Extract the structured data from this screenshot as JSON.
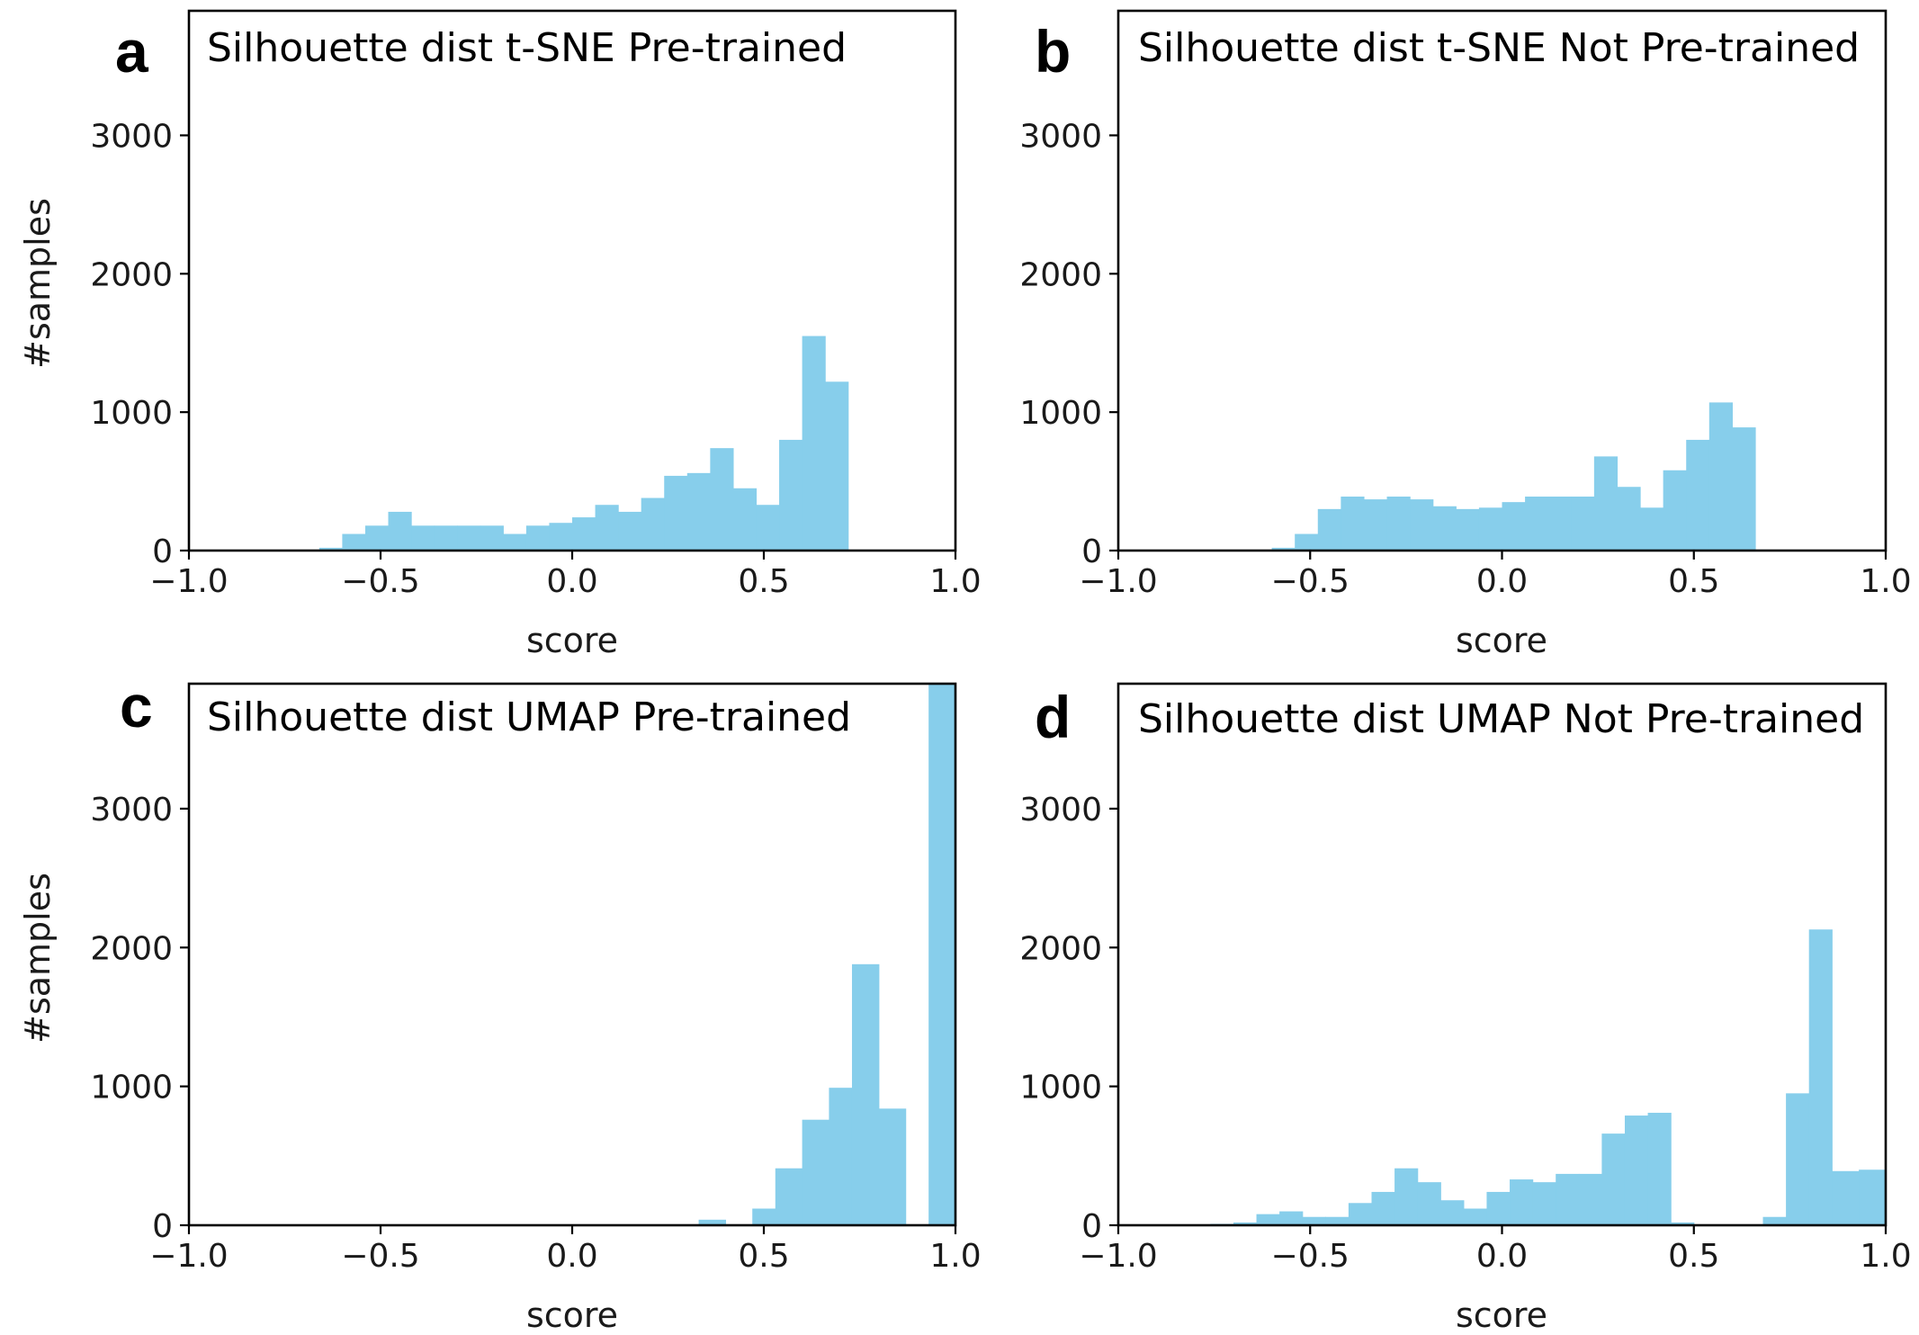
{
  "figure": {
    "bar_color": "#87CEEB"
  },
  "chart_data": [
    {
      "type": "bar",
      "letter": "a",
      "title": "Silhouette dist t-SNE Pre-trained",
      "xlabel": "score",
      "ylabel": "#samples",
      "xlim": [
        -1.0,
        1.0
      ],
      "ylim": [
        0,
        3900
      ],
      "xticks": [
        -1.0,
        -0.5,
        0.0,
        0.5,
        1.0
      ],
      "xtick_labels": [
        "−1.0",
        "−0.5",
        "0.0",
        "0.5",
        "1.0"
      ],
      "yticks": [
        0,
        1000,
        2000,
        3000
      ],
      "ytick_labels": [
        "0",
        "1000",
        "2000",
        "3000"
      ],
      "bin_edges": [
        -0.66,
        -0.6,
        -0.54,
        -0.48,
        -0.42,
        -0.36,
        -0.3,
        -0.24,
        -0.18,
        -0.12,
        -0.06,
        0.0,
        0.06,
        0.12,
        0.18,
        0.24,
        0.3,
        0.36,
        0.42,
        0.48,
        0.54,
        0.6,
        0.66,
        0.72,
        0.78,
        0.84
      ],
      "values": [
        20,
        120,
        180,
        280,
        180,
        180,
        180,
        180,
        120,
        180,
        200,
        240,
        330,
        280,
        380,
        540,
        560,
        740,
        450,
        330,
        800,
        1550,
        1220,
        0,
        0
      ]
    },
    {
      "type": "bar",
      "letter": "b",
      "title": "Silhouette dist t-SNE Not Pre-trained",
      "xlabel": "score",
      "ylabel": "",
      "xlim": [
        -1.0,
        1.0
      ],
      "ylim": [
        0,
        3900
      ],
      "xticks": [
        -1.0,
        -0.5,
        0.0,
        0.5,
        1.0
      ],
      "xtick_labels": [
        "−1.0",
        "−0.5",
        "0.0",
        "0.5",
        "1.0"
      ],
      "yticks": [
        0,
        1000,
        2000,
        3000
      ],
      "ytick_labels": [
        "0",
        "1000",
        "2000",
        "3000"
      ],
      "bin_edges": [
        -0.6,
        -0.54,
        -0.48,
        -0.42,
        -0.36,
        -0.3,
        -0.24,
        -0.18,
        -0.12,
        -0.06,
        0.0,
        0.06,
        0.12,
        0.18,
        0.24,
        0.3,
        0.36,
        0.42,
        0.48,
        0.54,
        0.6,
        0.66,
        0.72,
        0.78
      ],
      "values": [
        20,
        120,
        300,
        390,
        370,
        390,
        370,
        320,
        300,
        310,
        350,
        390,
        390,
        390,
        680,
        460,
        310,
        580,
        800,
        1070,
        890,
        0,
        0
      ]
    },
    {
      "type": "bar",
      "letter": "c",
      "title": "Silhouette dist UMAP Pre-trained",
      "xlabel": "score",
      "ylabel": "#samples",
      "xlim": [
        -1.0,
        1.0
      ],
      "ylim": [
        0,
        3900
      ],
      "xticks": [
        -1.0,
        -0.5,
        0.0,
        0.5,
        1.0
      ],
      "xtick_labels": [
        "−1.0",
        "−0.5",
        "0.0",
        "0.5",
        "1.0"
      ],
      "yticks": [
        0,
        1000,
        2000,
        3000
      ],
      "ytick_labels": [
        "0",
        "1000",
        "2000",
        "3000"
      ],
      "bin_edges": [
        0.33,
        0.4,
        0.47,
        0.53,
        0.6,
        0.67,
        0.73,
        0.8,
        0.87,
        0.93,
        1.0
      ],
      "values": [
        40,
        0,
        120,
        410,
        760,
        990,
        1880,
        840,
        0,
        3900
      ]
    },
    {
      "type": "bar",
      "letter": "d",
      "title": "Silhouette dist UMAP Not Pre-trained",
      "xlabel": "score",
      "ylabel": "",
      "xlim": [
        -1.0,
        1.0
      ],
      "ylim": [
        0,
        3900
      ],
      "xticks": [
        -1.0,
        -0.5,
        0.0,
        0.5,
        1.0
      ],
      "xtick_labels": [
        "−1.0",
        "−0.5",
        "0.0",
        "0.5",
        "1.0"
      ],
      "yticks": [
        0,
        1000,
        2000,
        3000
      ],
      "ytick_labels": [
        "0",
        "1000",
        "2000",
        "3000"
      ],
      "bin_edges": [
        -0.76,
        -0.7,
        -0.64,
        -0.58,
        -0.52,
        -0.46,
        -0.4,
        -0.34,
        -0.28,
        -0.22,
        -0.16,
        -0.1,
        -0.04,
        0.02,
        0.08,
        0.14,
        0.2,
        0.26,
        0.32,
        0.38,
        0.44,
        0.5,
        0.56,
        0.62,
        0.68,
        0.74,
        0.8,
        0.86,
        0.93,
        1.0
      ],
      "values": [
        10,
        20,
        80,
        100,
        60,
        60,
        160,
        240,
        410,
        310,
        180,
        120,
        240,
        330,
        310,
        370,
        370,
        660,
        790,
        810,
        20,
        0,
        0,
        0,
        60,
        950,
        2130,
        390,
        400
      ]
    }
  ]
}
